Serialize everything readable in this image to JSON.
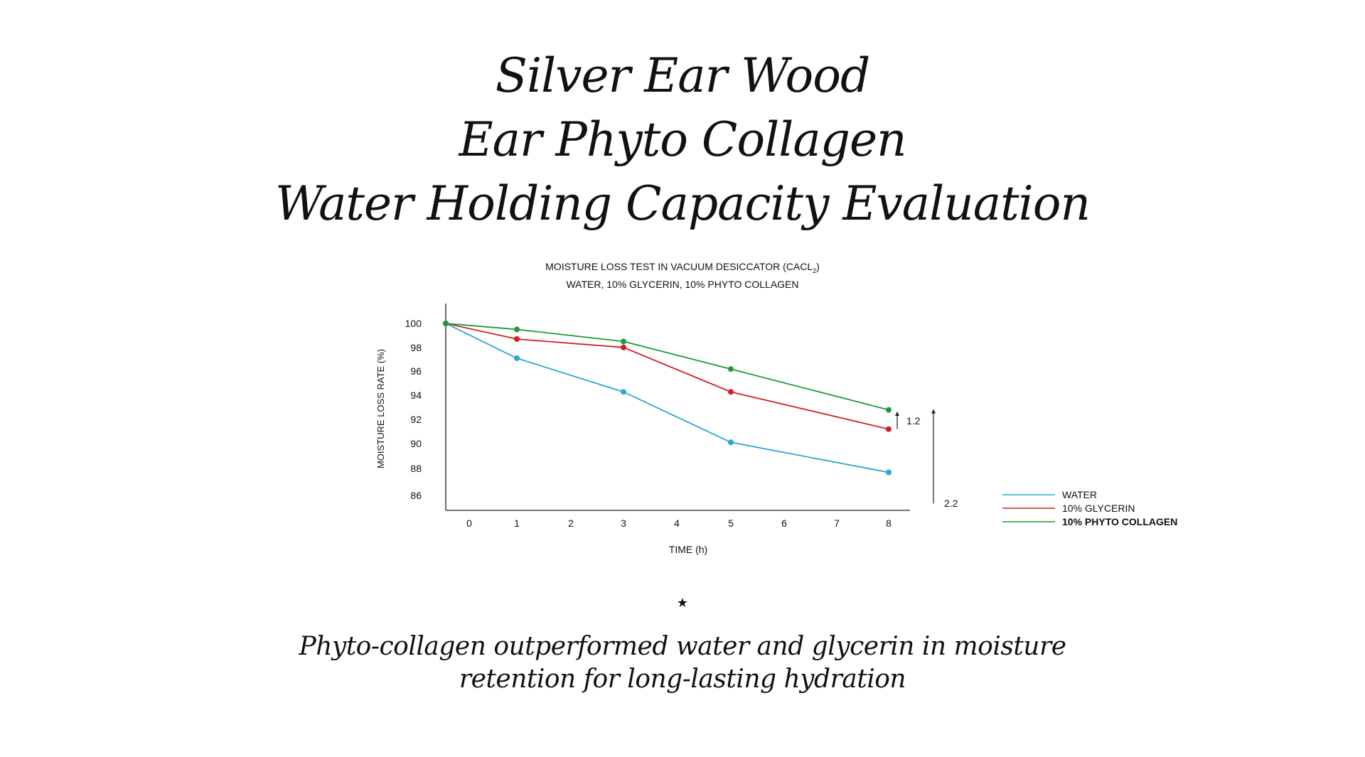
{
  "headline": {
    "line1": "Silver Ear Wood",
    "line2": "Ear Phyto Collagen",
    "line3": "Water Holding Capacity Evaluation"
  },
  "chart_data": {
    "type": "line",
    "title_line1_prefix": "MOISTURE LOSS TEST IN VACUUM DESICCATOR (CACL",
    "title_line1_sub": "2",
    "title_line1_suffix": ")",
    "title_line2": "WATER, 10% GLYCERIN, 10% PHYTO COLLAGEN",
    "xlabel": "TIME (h)",
    "ylabel": "MOISTURE LOSS RATE (%)",
    "x_ticks": [
      "0",
      "1",
      "2",
      "3",
      "4",
      "5",
      "6",
      "7",
      "8"
    ],
    "y_ticks": [
      "100",
      "98",
      "96",
      "94",
      "92",
      "90",
      "88",
      "86"
    ],
    "ylim": [
      86,
      100
    ],
    "series": [
      {
        "name": "WATER",
        "color": "#2aa8d2",
        "x": [
          0,
          1,
          3,
          5,
          8
        ],
        "values": [
          100,
          97.1,
          94.3,
          90.1,
          87.6
        ]
      },
      {
        "name": "10% GLYCERIN",
        "color": "#d11f26",
        "x": [
          0,
          1,
          3,
          5,
          8
        ],
        "values": [
          100,
          98.7,
          98.0,
          94.3,
          91.2
        ]
      },
      {
        "name": "10% PHYTO COLLAGEN",
        "color": "#1f9a3c",
        "x": [
          0,
          1,
          3,
          5,
          8
        ],
        "values": [
          100,
          99.5,
          98.5,
          96.2,
          92.8
        ]
      }
    ],
    "annotations": [
      {
        "label": "1.2",
        "from": 91.2,
        "to": 92.6
      },
      {
        "label": "2.2",
        "from": 85.0,
        "to": 92.8
      }
    ],
    "legend_position": "bottom-right",
    "grid": false
  },
  "separator": "★",
  "tagline": {
    "line1": "Phyto-collagen outperformed water and glycerin in moisture",
    "line2": "retention for long-lasting hydration"
  }
}
